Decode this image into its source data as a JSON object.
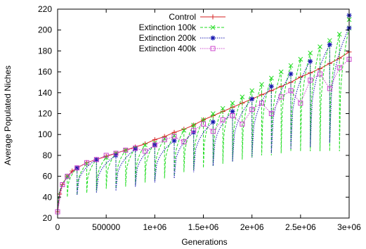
{
  "chart_data": {
    "type": "line",
    "title": "",
    "xlabel": "Generations",
    "ylabel": "Average Populated Niches",
    "xlim": [
      0,
      3000000
    ],
    "ylim": [
      20,
      220
    ],
    "x_ticks": [
      0,
      500000,
      1000000,
      1500000,
      2000000,
      2500000,
      3000000
    ],
    "x_tick_labels": [
      "0",
      "500000",
      "1e+06",
      "1.5e+06",
      "2e+06",
      "2.5e+06",
      "3e+06"
    ],
    "y_ticks": [
      20,
      40,
      60,
      80,
      100,
      120,
      140,
      160,
      180,
      200,
      220
    ],
    "y_tick_labels": [
      "20",
      "40",
      "60",
      "80",
      "100",
      "120",
      "140",
      "160",
      "180",
      "200",
      "220"
    ],
    "grid": false,
    "legend_position": "top-left",
    "series": [
      {
        "name": "Control",
        "color": "#d62020",
        "marker": "plus",
        "style": "solid",
        "x": [
          0,
          20000,
          50000,
          100000,
          150000,
          200000,
          300000,
          400000,
          500000,
          600000,
          700000,
          800000,
          900000,
          1000000,
          1100000,
          1200000,
          1300000,
          1400000,
          1500000,
          1600000,
          1700000,
          1800000,
          1900000,
          2000000,
          2100000,
          2200000,
          2300000,
          2400000,
          2500000,
          2600000,
          2700000,
          2800000,
          2900000,
          3000000
        ],
        "y": [
          26,
          43,
          52,
          60,
          65,
          68,
          73,
          76,
          79,
          82,
          85,
          88,
          91,
          95,
          98,
          102,
          105,
          109,
          114,
          118,
          122,
          126,
          130,
          134,
          138,
          142,
          146,
          150,
          155,
          159,
          163,
          168,
          173,
          179
        ]
      },
      {
        "name": "Extinction 100k",
        "color": "#22dd22",
        "marker": "cross",
        "style": "dashed",
        "period": 100000,
        "peaks": [
          60,
          68,
          72,
          76,
          78,
          82,
          85,
          87,
          90,
          92,
          96,
          99,
          104,
          109,
          114,
          120,
          125,
          130,
          136,
          142,
          148,
          154,
          160,
          166,
          172,
          178,
          184,
          190,
          196,
          202
        ],
        "troughs": [
          40,
          42,
          44,
          46,
          48,
          48,
          50,
          52,
          54,
          56,
          58,
          60,
          64,
          66,
          68,
          70,
          72,
          74,
          76,
          78,
          80,
          80,
          82,
          84,
          84,
          84,
          84,
          84,
          84,
          84
        ],
        "end_value": 210
      },
      {
        "name": "Extinction 200k",
        "color": "#1818b0",
        "marker": "star",
        "style": "dotted",
        "period": 200000,
        "peaks": [
          68,
          76,
          80,
          86,
          90,
          94,
          102,
          112,
          122,
          134,
          146,
          158,
          170,
          186,
          202
        ],
        "troughs": [
          42,
          44,
          46,
          50,
          54,
          58,
          64,
          70,
          74,
          78,
          82,
          86,
          88,
          92,
          96
        ],
        "end_value": 214
      },
      {
        "name": "Extinction 400k",
        "color": "#cc44cc",
        "marker": "square",
        "style": "dotted",
        "x": [
          0,
          50000,
          100000,
          200000,
          300000,
          400000,
          500000,
          600000,
          700000,
          800000,
          900000,
          1000000,
          1100000,
          1200000,
          1300000,
          1400000,
          1500000,
          1600000,
          1700000,
          1800000,
          1900000,
          2000000,
          2100000,
          2200000,
          2300000,
          2400000,
          2500000,
          2600000,
          2700000,
          2800000,
          2900000,
          3000000
        ],
        "y": [
          26,
          52,
          60,
          68,
          73,
          76,
          80,
          82,
          85,
          87,
          84,
          90,
          95,
          98,
          93,
          104,
          110,
          103,
          114,
          118,
          110,
          124,
          130,
          120,
          136,
          142,
          130,
          152,
          158,
          144,
          164,
          172
        ]
      }
    ]
  }
}
